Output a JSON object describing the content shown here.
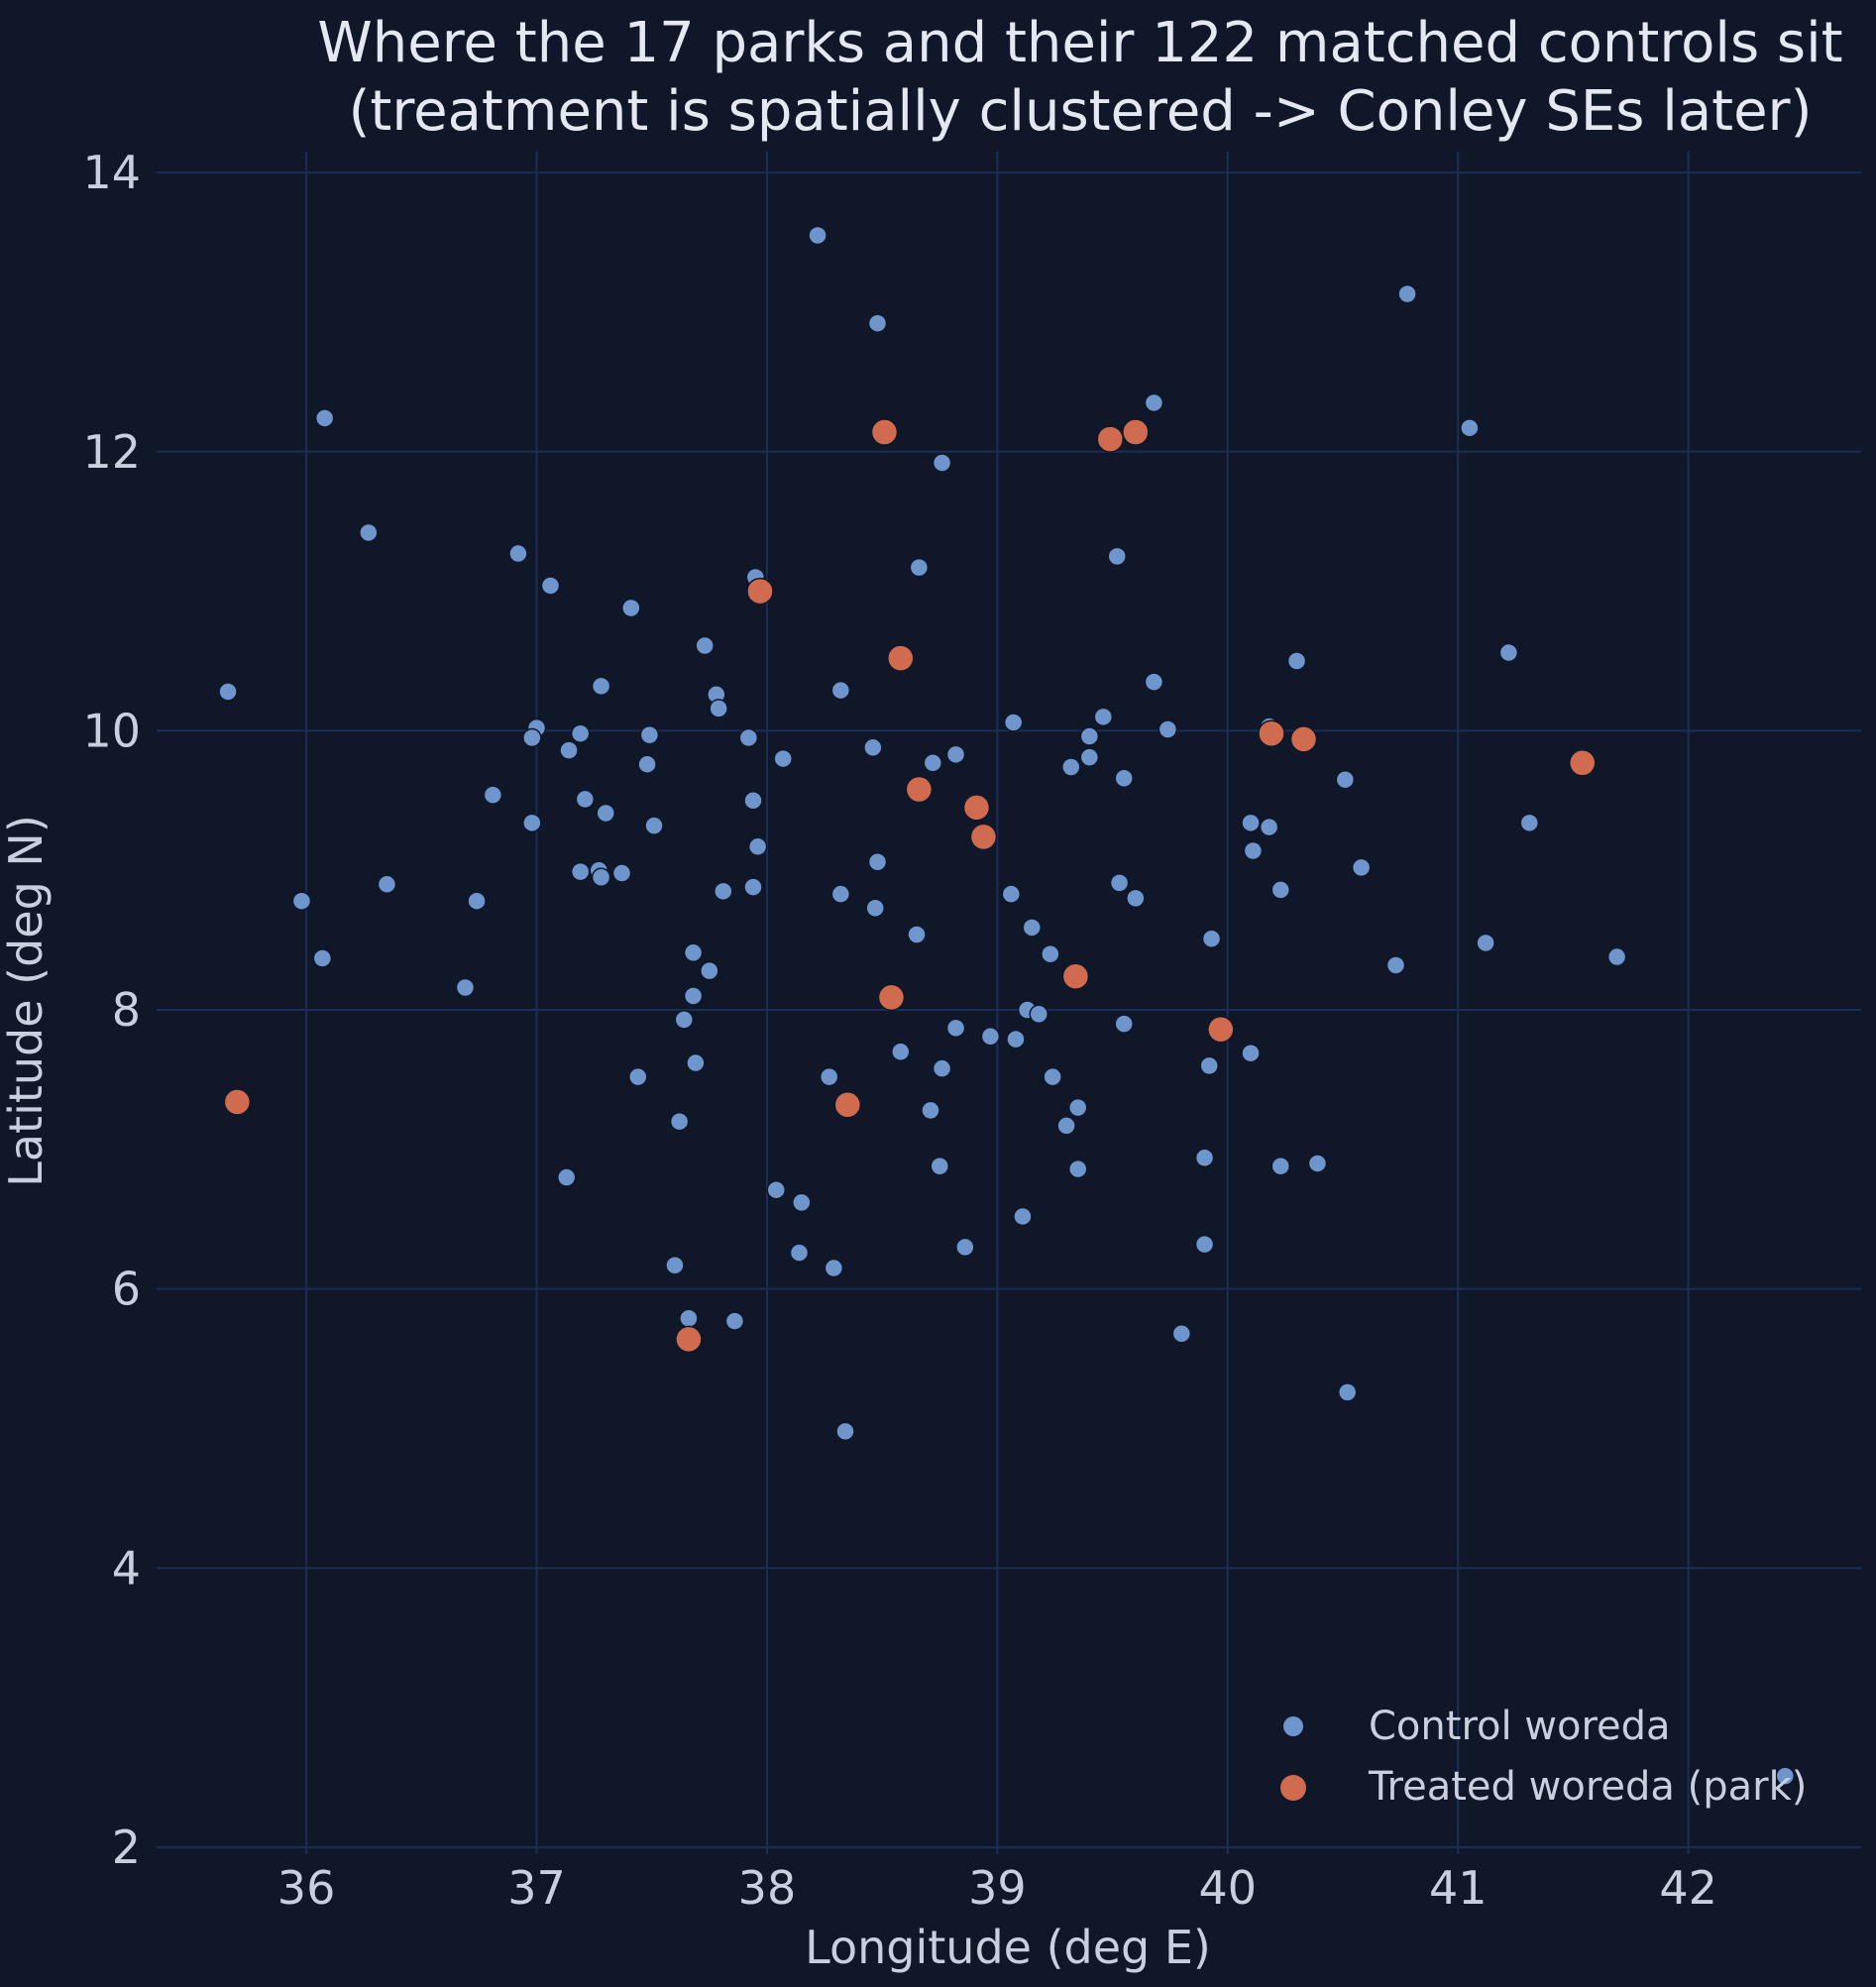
{
  "chart_data": {
    "type": "scatter",
    "title": "Where the 17 parks and their 122 matched controls sit",
    "subtitle": "(treatment is spatially clustered -> Conley SEs later)",
    "xlabel": "Longitude (deg E)",
    "ylabel": "Latitude (deg N)",
    "xlim": [
      35.35,
      42.75
    ],
    "ylim": [
      1.95,
      14.15
    ],
    "xticks": [
      36,
      37,
      38,
      39,
      40,
      41,
      42
    ],
    "yticks": [
      2,
      4,
      6,
      8,
      10,
      12,
      14
    ],
    "grid": true,
    "legend_placement": "lower-right",
    "background": "#0f1729",
    "grid_color": "#1e2d55",
    "series": [
      {
        "name": "Control woreda",
        "color": "#6e95cc",
        "points": [
          [
            38.22,
            13.55
          ],
          [
            40.78,
            13.13
          ],
          [
            38.48,
            12.92
          ],
          [
            36.08,
            12.24
          ],
          [
            39.68,
            12.35
          ],
          [
            41.05,
            12.17
          ],
          [
            38.76,
            11.92
          ],
          [
            36.27,
            11.42
          ],
          [
            36.92,
            11.27
          ],
          [
            39.52,
            11.25
          ],
          [
            38.66,
            11.17
          ],
          [
            37.95,
            11.1
          ],
          [
            37.06,
            11.04
          ],
          [
            37.41,
            10.88
          ],
          [
            37.73,
            10.61
          ],
          [
            41.22,
            10.56
          ],
          [
            40.3,
            10.5
          ],
          [
            39.68,
            10.35
          ],
          [
            37.28,
            10.32
          ],
          [
            35.66,
            10.28
          ],
          [
            38.32,
            10.29
          ],
          [
            37.78,
            10.26
          ],
          [
            37.79,
            10.16
          ],
          [
            39.46,
            10.1
          ],
          [
            39.07,
            10.06
          ],
          [
            40.18,
            10.03
          ],
          [
            37.0,
            10.02
          ],
          [
            39.74,
            10.01
          ],
          [
            37.19,
            9.98
          ],
          [
            37.49,
            9.97
          ],
          [
            36.98,
            9.95
          ],
          [
            39.4,
            9.96
          ],
          [
            37.92,
            9.95
          ],
          [
            38.46,
            9.88
          ],
          [
            37.14,
            9.86
          ],
          [
            38.82,
            9.83
          ],
          [
            39.4,
            9.81
          ],
          [
            38.07,
            9.8
          ],
          [
            38.72,
            9.77
          ],
          [
            37.48,
            9.76
          ],
          [
            39.32,
            9.74
          ],
          [
            39.55,
            9.66
          ],
          [
            40.51,
            9.65
          ],
          [
            36.81,
            9.54
          ],
          [
            37.21,
            9.51
          ],
          [
            37.94,
            9.5
          ],
          [
            37.3,
            9.41
          ],
          [
            40.1,
            9.34
          ],
          [
            41.31,
            9.34
          ],
          [
            36.98,
            9.34
          ],
          [
            37.51,
            9.32
          ],
          [
            40.18,
            9.31
          ],
          [
            37.96,
            9.17
          ],
          [
            40.11,
            9.14
          ],
          [
            38.48,
            9.06
          ],
          [
            40.58,
            9.02
          ],
          [
            37.19,
            8.99
          ],
          [
            37.27,
            9.0
          ],
          [
            37.37,
            8.98
          ],
          [
            37.28,
            8.95
          ],
          [
            36.35,
            8.9
          ],
          [
            39.53,
            8.91
          ],
          [
            37.94,
            8.88
          ],
          [
            37.81,
            8.85
          ],
          [
            38.32,
            8.83
          ],
          [
            40.23,
            8.86
          ],
          [
            39.06,
            8.83
          ],
          [
            39.6,
            8.8
          ],
          [
            35.98,
            8.78
          ],
          [
            36.74,
            8.78
          ],
          [
            38.47,
            8.73
          ],
          [
            39.15,
            8.59
          ],
          [
            38.65,
            8.54
          ],
          [
            39.93,
            8.51
          ],
          [
            41.12,
            8.48
          ],
          [
            37.68,
            8.41
          ],
          [
            39.23,
            8.4
          ],
          [
            41.69,
            8.38
          ],
          [
            36.07,
            8.37
          ],
          [
            40.73,
            8.32
          ],
          [
            37.75,
            8.28
          ],
          [
            36.69,
            8.16
          ],
          [
            37.68,
            8.1
          ],
          [
            39.13,
            8.0
          ],
          [
            39.18,
            7.97
          ],
          [
            37.64,
            7.93
          ],
          [
            39.55,
            7.9
          ],
          [
            38.82,
            7.87
          ],
          [
            38.97,
            7.81
          ],
          [
            39.08,
            7.79
          ],
          [
            40.1,
            7.69
          ],
          [
            38.58,
            7.7
          ],
          [
            37.69,
            7.62
          ],
          [
            38.76,
            7.58
          ],
          [
            39.92,
            7.6
          ],
          [
            37.44,
            7.52
          ],
          [
            38.27,
            7.52
          ],
          [
            39.24,
            7.52
          ],
          [
            39.35,
            7.3
          ],
          [
            38.71,
            7.28
          ],
          [
            37.62,
            7.2
          ],
          [
            39.3,
            7.17
          ],
          [
            39.9,
            6.94
          ],
          [
            40.39,
            6.9
          ],
          [
            40.23,
            6.88
          ],
          [
            38.75,
            6.88
          ],
          [
            39.35,
            6.86
          ],
          [
            37.13,
            6.8
          ],
          [
            38.04,
            6.71
          ],
          [
            38.15,
            6.62
          ],
          [
            39.11,
            6.52
          ],
          [
            39.9,
            6.32
          ],
          [
            38.86,
            6.3
          ],
          [
            38.14,
            6.26
          ],
          [
            38.29,
            6.15
          ],
          [
            37.6,
            6.17
          ],
          [
            37.66,
            5.79
          ],
          [
            37.86,
            5.77
          ],
          [
            39.8,
            5.68
          ],
          [
            40.52,
            5.26
          ],
          [
            38.34,
            4.98
          ],
          [
            42.42,
            2.51
          ]
        ]
      },
      {
        "name": "Treated woreda (park)",
        "color": "#d16b4f",
        "points": [
          [
            38.51,
            12.14
          ],
          [
            39.49,
            12.09
          ],
          [
            39.6,
            12.14
          ],
          [
            37.97,
            11.0
          ],
          [
            38.58,
            10.52
          ],
          [
            40.19,
            9.98
          ],
          [
            40.33,
            9.94
          ],
          [
            41.54,
            9.77
          ],
          [
            38.66,
            9.58
          ],
          [
            38.91,
            9.45
          ],
          [
            38.94,
            9.24
          ],
          [
            39.34,
            8.24
          ],
          [
            38.54,
            8.09
          ],
          [
            39.97,
            7.86
          ],
          [
            35.7,
            7.34
          ],
          [
            38.35,
            7.32
          ],
          [
            37.66,
            5.64
          ]
        ]
      }
    ]
  }
}
